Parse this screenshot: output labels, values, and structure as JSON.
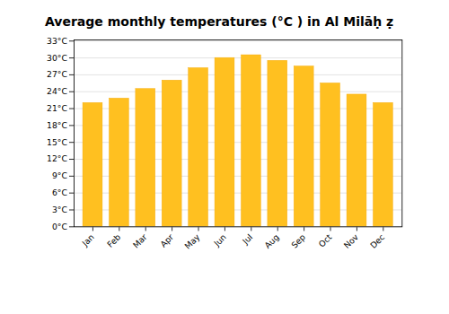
{
  "chart_data": {
    "type": "bar",
    "title": "Average monthly temperatures (°C ) in Al Milāḥ ẓ",
    "categories": [
      "Jan",
      "Feb",
      "Mar",
      "Apr",
      "May",
      "Jun",
      "Jul",
      "Aug",
      "Sep",
      "Oct",
      "Nov",
      "Dec"
    ],
    "values": [
      22.0,
      22.8,
      24.5,
      26.0,
      28.2,
      30.0,
      30.5,
      29.5,
      28.5,
      25.5,
      23.5,
      22.0
    ],
    "color": "#FFC020",
    "ylim": [
      0,
      33.2
    ],
    "yticks": [
      {
        "value": 0,
        "label": "0°C"
      },
      {
        "value": 3,
        "label": "3°C"
      },
      {
        "value": 6,
        "label": "6°C"
      },
      {
        "value": 9,
        "label": "9°C"
      },
      {
        "value": 12,
        "label": "12°C"
      },
      {
        "value": 15,
        "label": "15°C"
      },
      {
        "value": 18,
        "label": "18°C"
      },
      {
        "value": 21,
        "label": "21°C"
      },
      {
        "value": 24,
        "label": "24°C"
      },
      {
        "value": 27,
        "label": "27°C"
      },
      {
        "value": 30,
        "label": "30°C"
      },
      {
        "value": 33,
        "label": "33°C"
      }
    ],
    "grid": true
  }
}
